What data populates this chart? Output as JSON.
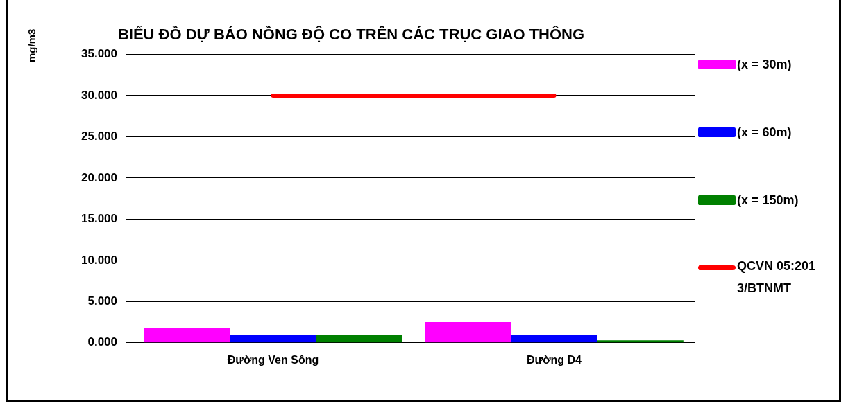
{
  "chart_data": {
    "type": "bar",
    "title": "BIỂU ĐỒ DỰ BÁO NỒNG ĐỘ CO TRÊN CÁC TRỤC GIAO THÔNG",
    "ylabel": "mg/m3",
    "categories": [
      "Đường Ven Sông",
      "Đường D4"
    ],
    "series": [
      {
        "name": "(x = 30m)",
        "color": "#ff00ff",
        "values": [
          1.8,
          2.5
        ]
      },
      {
        "name": "(x = 60m)",
        "color": "#0000ff",
        "values": [
          1.0,
          0.9
        ]
      },
      {
        "name": "(x = 150m)",
        "color": "#008000",
        "values": [
          1.0,
          0.3
        ]
      },
      {
        "name": "QCVN 05:2013/BTNMT",
        "type": "line",
        "color": "#ff0000",
        "values": [
          30,
          30
        ]
      }
    ],
    "ylim": [
      0,
      35
    ],
    "yticks": [
      {
        "value": 0,
        "label": "0.000"
      },
      {
        "value": 5,
        "label": "5.000"
      },
      {
        "value": 10,
        "label": "10.000"
      },
      {
        "value": 15,
        "label": "15.000"
      },
      {
        "value": 20,
        "label": "20.000"
      },
      {
        "value": 25,
        "label": "25.000"
      },
      {
        "value": 30,
        "label": "30.000"
      },
      {
        "value": 35,
        "label": "35.000"
      }
    ],
    "grid": "y",
    "legend": "right"
  }
}
